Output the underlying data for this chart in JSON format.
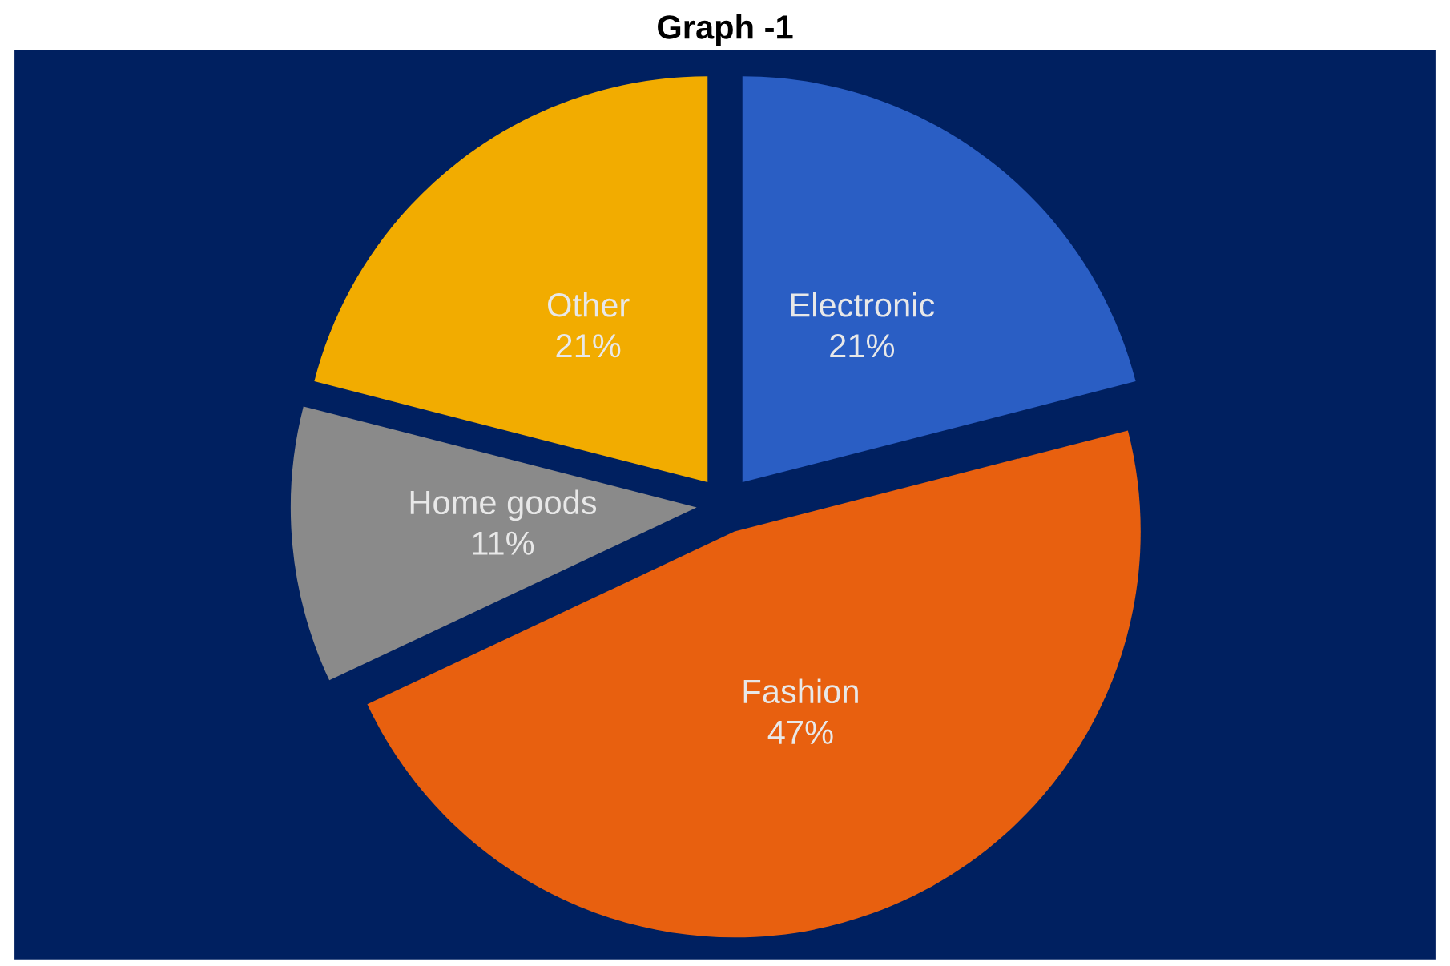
{
  "chart_data": {
    "type": "pie",
    "title": "Graph -1",
    "categories": [
      "Electronic",
      "Fashion",
      "Home goods",
      "Other"
    ],
    "values": [
      21,
      47,
      11,
      21
    ],
    "colors": [
      "#2a5ec4",
      "#e8600f",
      "#8a8a8a",
      "#f2ac00"
    ],
    "value_labels": [
      "21%",
      "47%",
      "11%",
      "21%"
    ],
    "legend": false
  }
}
